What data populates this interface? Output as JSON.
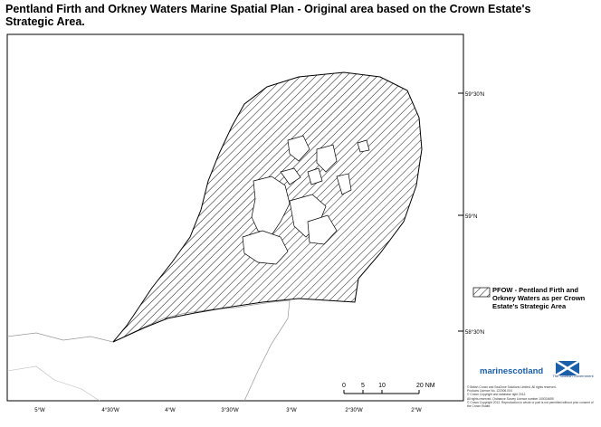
{
  "title": "Pentland Firth and Orkney Waters Marine Spatial Plan -  Original area based on the Crown Estate's Strategic Area.",
  "latitude_labels": [
    "59°30'N",
    "59°N",
    "58°30'N"
  ],
  "longitude_labels": [
    "5°W",
    "4°30'W",
    "4°W",
    "3°30'W",
    "3°W",
    "2°30'W",
    "2°W"
  ],
  "legend": {
    "label": "PFOW - Pentland Firth and Orkney Waters as per Crown Estate's Strategic Area"
  },
  "scale_bar": {
    "ticks": [
      "0",
      "5",
      "10",
      "20 NM"
    ]
  },
  "logos": {
    "marine": "marinescotland",
    "government": "The Scottish Government"
  },
  "copyright": [
    "© British Crown and SeaZone Solutions Limited. All rights reserved.",
    "Products Licence No. 122006.004",
    "© Crown Copyright and database right 2012.",
    "All rights reserved. Ordnance Survey Licence number 100024655",
    "© Crown Copyright 2012. Reproduction in whole or part is not permitted without prior consent of the Crown Estate."
  ]
}
